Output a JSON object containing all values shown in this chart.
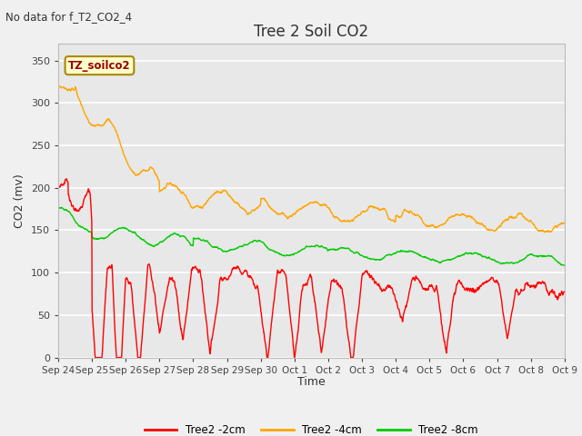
{
  "title": "Tree 2 Soil CO2",
  "subtitle": "No data for f_T2_CO2_4",
  "ylabel": "CO2 (mv)",
  "xlabel": "Time",
  "legend_label": "TZ_soilco2",
  "ylim": [
    0,
    370
  ],
  "yticks": [
    0,
    50,
    100,
    150,
    200,
    250,
    300,
    350
  ],
  "tick_labels": [
    "Sep 24",
    "Sep 25",
    "Sep 26",
    "Sep 27",
    "Sep 28",
    "Sep 29",
    "Sep 30",
    "Oct 1",
    "Oct 2",
    "Oct 3",
    "Oct 4",
    "Oct 5",
    "Oct 6",
    "Oct 7",
    "Oct 8",
    "Oct 9"
  ],
  "series_labels": [
    "Tree2 -2cm",
    "Tree2 -4cm",
    "Tree2 -8cm"
  ],
  "colors": [
    "#ff0000",
    "#ffa500",
    "#00cc00"
  ],
  "background_color": "#f0f0f0",
  "plot_bg_color": "#e8e8e8",
  "grid_color": "#ffffff"
}
